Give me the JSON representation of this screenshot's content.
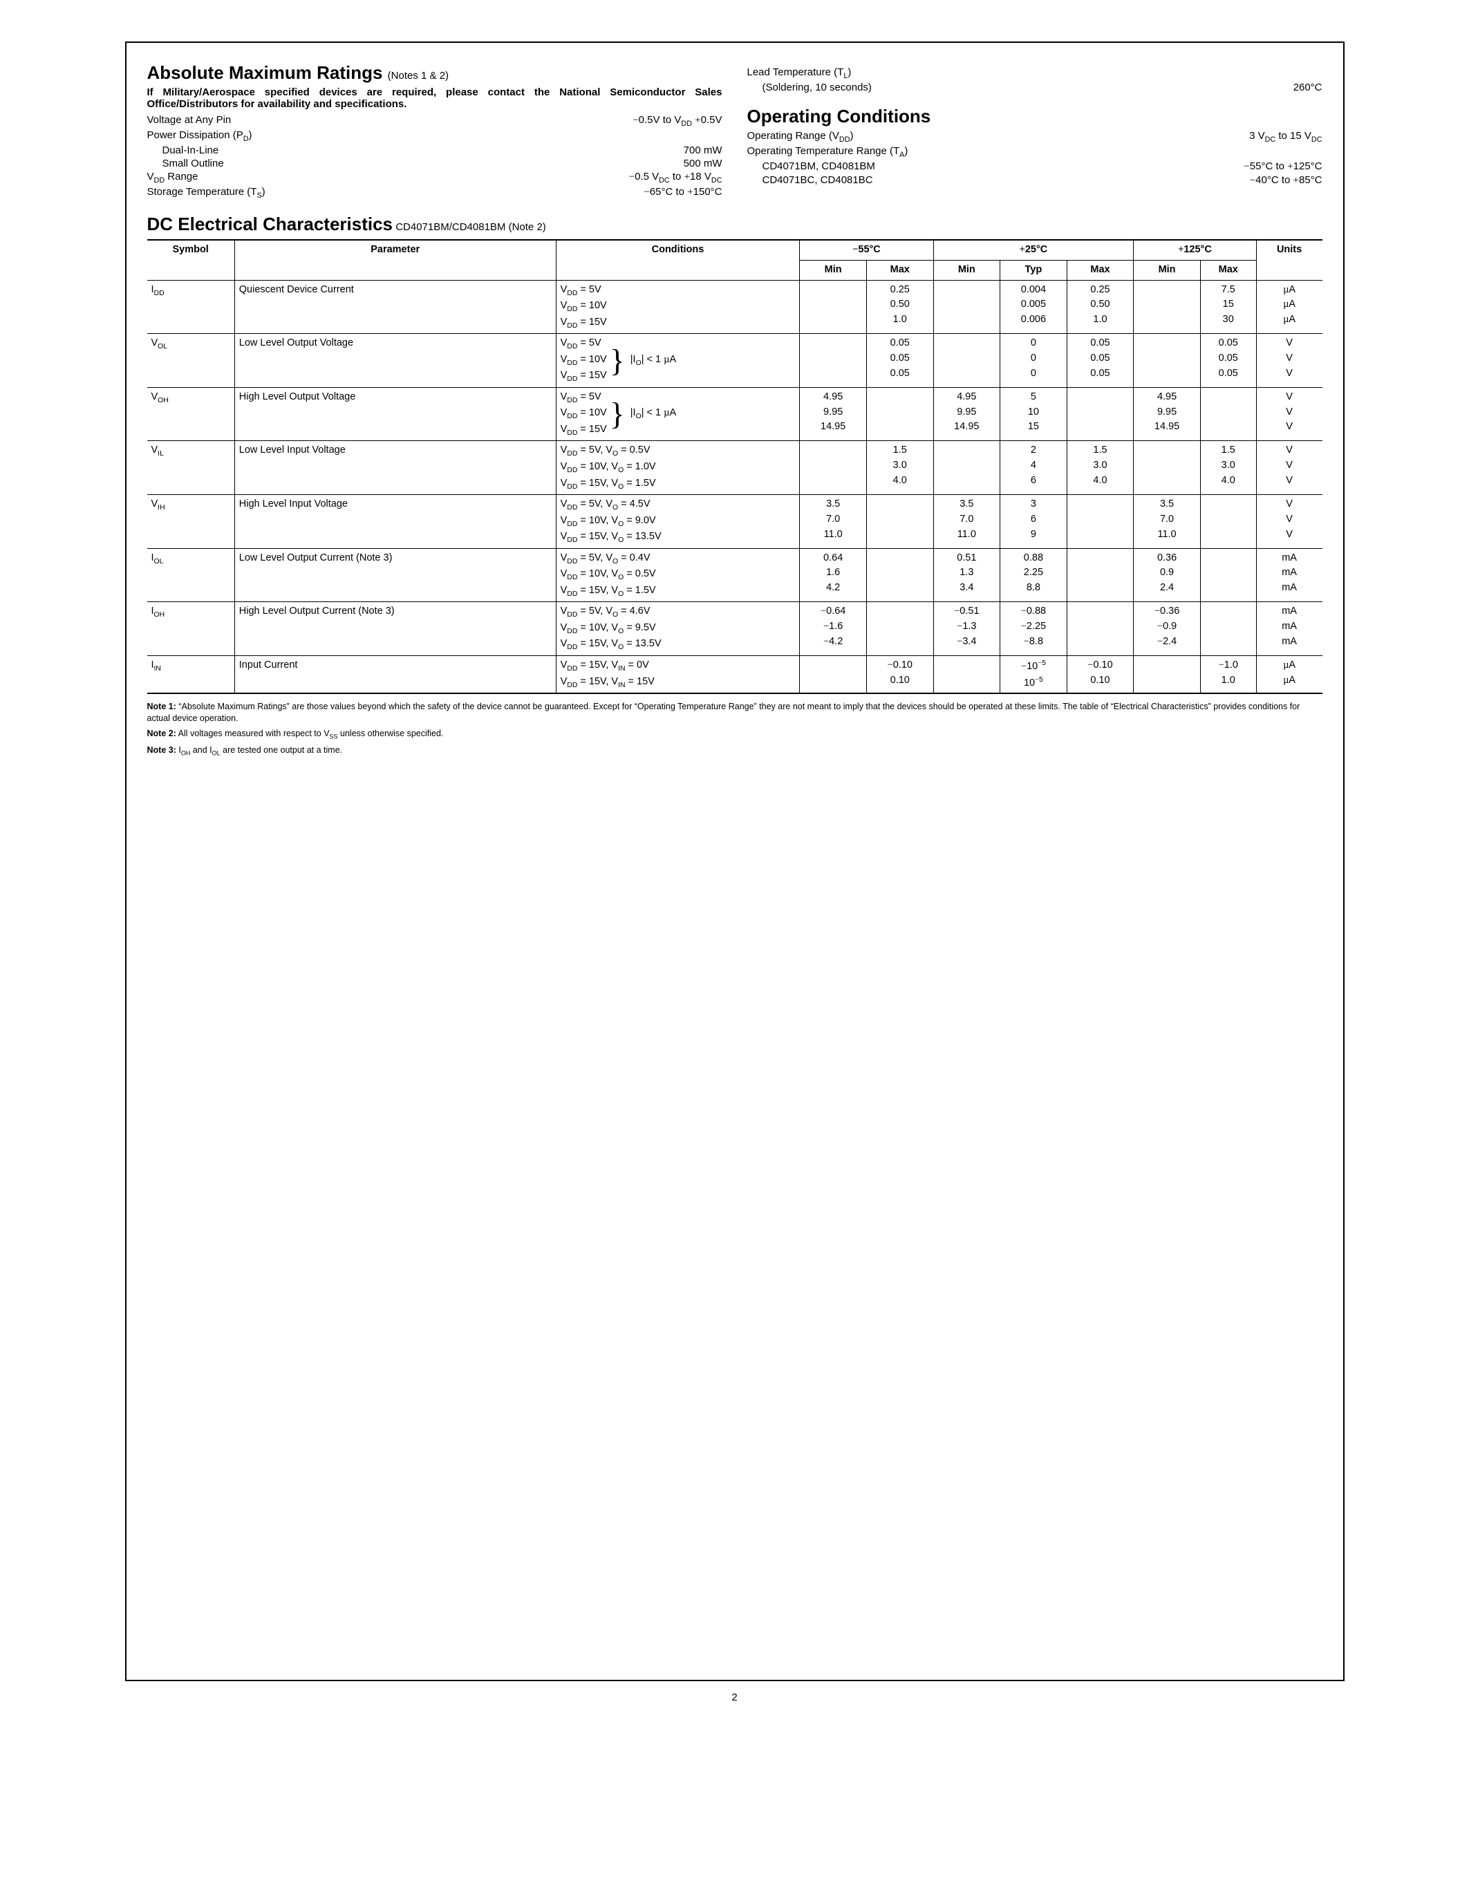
{
  "abs_max": {
    "title": "Absolute Maximum Ratings",
    "title_note": "(Notes 1 & 2)",
    "military_note": "If Military/Aerospace specified devices are required, please contact the National Semiconductor Sales Office/Distributors for availability and specifications.",
    "voltage_pin_label": "Voltage at Any Pin",
    "voltage_pin_val": "−0.5V to V_DD +0.5V",
    "pd_label": "Power Dissipation (P_D)",
    "pd_dual_label": "Dual-In-Line",
    "pd_dual_val": "700 mW",
    "pd_so_label": "Small Outline",
    "pd_so_val": "500 mW",
    "vdd_range_label": "V_DD Range",
    "vdd_range_val": "−0.5 V_DC to +18 V_DC",
    "storage_label": "Storage Temperature (T_S)",
    "storage_val": "−65°C to +150°C",
    "lead_label": "Lead Temperature (T_L)",
    "lead_sub": "(Soldering, 10 seconds)",
    "lead_val": "260°C"
  },
  "op_cond": {
    "title": "Operating Conditions",
    "vdd_label": "Operating Range (V_DD)",
    "vdd_val": "3 V_DC to 15 V_DC",
    "temp_label": "Operating Temperature Range (T_A)",
    "bm_label": "CD4071BM, CD4081BM",
    "bm_val": "−55°C to +125°C",
    "bc_label": "CD4071BC, CD4081BC",
    "bc_val": "−40°C to +85°C"
  },
  "dc": {
    "title": "DC Electrical Characteristics",
    "subtitle": "CD4071BM/CD4081BM (Note 2)",
    "headers": {
      "symbol": "Symbol",
      "parameter": "Parameter",
      "conditions": "Conditions",
      "t1": "−55°C",
      "t2": "+25°C",
      "t3": "+125°C",
      "min": "Min",
      "typ": "Typ",
      "max": "Max",
      "units": "Units"
    },
    "rows": [
      {
        "sym": "I_DD",
        "param": "Quiescent Device Current",
        "cond": [
          "V_DD = 5V",
          "V_DD = 10V",
          "V_DD = 15V"
        ],
        "brace": "",
        "t1min": [
          "",
          "",
          ""
        ],
        "t1max": [
          "0.25",
          "0.50",
          "1.0"
        ],
        "t2min": [
          "",
          "",
          ""
        ],
        "t2typ": [
          "0.004",
          "0.005",
          "0.006"
        ],
        "t2max": [
          "0.25",
          "0.50",
          "1.0"
        ],
        "t3min": [
          "",
          "",
          ""
        ],
        "t3max": [
          "7.5",
          "15",
          "30"
        ],
        "units": [
          "µA",
          "µA",
          "µA"
        ]
      },
      {
        "sym": "V_OL",
        "param": "Low Level Output Voltage",
        "cond": [
          "V_DD = 5V",
          "V_DD = 10V",
          "V_DD = 15V"
        ],
        "brace": "|I_O| < 1 µA",
        "t1min": [
          "",
          "",
          ""
        ],
        "t1max": [
          "0.05",
          "0.05",
          "0.05"
        ],
        "t2min": [
          "",
          "",
          ""
        ],
        "t2typ": [
          "0",
          "0",
          "0"
        ],
        "t2max": [
          "0.05",
          "0.05",
          "0.05"
        ],
        "t3min": [
          "",
          "",
          ""
        ],
        "t3max": [
          "0.05",
          "0.05",
          "0.05"
        ],
        "units": [
          "V",
          "V",
          "V"
        ]
      },
      {
        "sym": "V_OH",
        "param": "High Level Output Voltage",
        "cond": [
          "V_DD = 5V",
          "V_DD = 10V",
          "V_DD = 15V"
        ],
        "brace": "|I_O| < 1 µA",
        "t1min": [
          "4.95",
          "9.95",
          "14.95"
        ],
        "t1max": [
          "",
          "",
          ""
        ],
        "t2min": [
          "4.95",
          "9.95",
          "14.95"
        ],
        "t2typ": [
          "5",
          "10",
          "15"
        ],
        "t2max": [
          "",
          "",
          ""
        ],
        "t3min": [
          "4.95",
          "9.95",
          "14.95"
        ],
        "t3max": [
          "",
          "",
          ""
        ],
        "units": [
          "V",
          "V",
          "V"
        ]
      },
      {
        "sym": "V_IL",
        "param": "Low Level Input Voltage",
        "cond": [
          "V_DD = 5V, V_O = 0.5V",
          "V_DD = 10V, V_O = 1.0V",
          "V_DD = 15V, V_O = 1.5V"
        ],
        "brace": "",
        "t1min": [
          "",
          "",
          ""
        ],
        "t1max": [
          "1.5",
          "3.0",
          "4.0"
        ],
        "t2min": [
          "",
          "",
          ""
        ],
        "t2typ": [
          "2",
          "4",
          "6"
        ],
        "t2max": [
          "1.5",
          "3.0",
          "4.0"
        ],
        "t3min": [
          "",
          "",
          ""
        ],
        "t3max": [
          "1.5",
          "3.0",
          "4.0"
        ],
        "units": [
          "V",
          "V",
          "V"
        ]
      },
      {
        "sym": "V_IH",
        "param": "High Level Input Voltage",
        "cond": [
          "V_DD = 5V, V_O = 4.5V",
          "V_DD = 10V, V_O = 9.0V",
          "V_DD = 15V, V_O = 13.5V"
        ],
        "brace": "",
        "t1min": [
          "3.5",
          "7.0",
          "11.0"
        ],
        "t1max": [
          "",
          "",
          ""
        ],
        "t2min": [
          "3.5",
          "7.0",
          "11.0"
        ],
        "t2typ": [
          "3",
          "6",
          "9"
        ],
        "t2max": [
          "",
          "",
          ""
        ],
        "t3min": [
          "3.5",
          "7.0",
          "11.0"
        ],
        "t3max": [
          "",
          "",
          ""
        ],
        "units": [
          "V",
          "V",
          "V"
        ]
      },
      {
        "sym": "I_OL",
        "param": "Low Level Output Current (Note 3)",
        "cond": [
          "V_DD = 5V, V_O = 0.4V",
          "V_DD = 10V, V_O = 0.5V",
          "V_DD = 15V, V_O = 1.5V"
        ],
        "brace": "",
        "t1min": [
          "0.64",
          "1.6",
          "4.2"
        ],
        "t1max": [
          "",
          "",
          ""
        ],
        "t2min": [
          "0.51",
          "1.3",
          "3.4"
        ],
        "t2typ": [
          "0.88",
          "2.25",
          "8.8"
        ],
        "t2max": [
          "",
          "",
          ""
        ],
        "t3min": [
          "0.36",
          "0.9",
          "2.4"
        ],
        "t3max": [
          "",
          "",
          ""
        ],
        "units": [
          "mA",
          "mA",
          "mA"
        ]
      },
      {
        "sym": "I_OH",
        "param": "High Level Output Current (Note 3)",
        "cond": [
          "V_DD = 5V, V_O = 4.6V",
          "V_DD = 10V, V_O = 9.5V",
          "V_DD = 15V, V_O = 13.5V"
        ],
        "brace": "",
        "t1min": [
          "−0.64",
          "−1.6",
          "−4.2"
        ],
        "t1max": [
          "",
          "",
          ""
        ],
        "t2min": [
          "−0.51",
          "−1.3",
          "−3.4"
        ],
        "t2typ": [
          "−0.88",
          "−2.25",
          "−8.8"
        ],
        "t2max": [
          "",
          "",
          ""
        ],
        "t3min": [
          "−0.36",
          "−0.9",
          "−2.4"
        ],
        "t3max": [
          "",
          "",
          ""
        ],
        "units": [
          "mA",
          "mA",
          "mA"
        ]
      },
      {
        "sym": "I_IN",
        "param": "Input Current",
        "cond": [
          "V_DD = 15V, V_IN = 0V",
          "V_DD = 15V, V_IN = 15V"
        ],
        "brace": "",
        "t1min": [
          "",
          ""
        ],
        "t1max": [
          "−0.10",
          "0.10"
        ],
        "t2min": [
          "",
          ""
        ],
        "t2typ": [
          "−10^−5",
          "10^−5"
        ],
        "t2max": [
          "−0.10",
          "0.10"
        ],
        "t3min": [
          "",
          ""
        ],
        "t3max": [
          "−1.0",
          "1.0"
        ],
        "units": [
          "µA",
          "µA"
        ]
      }
    ]
  },
  "notes": {
    "n1_label": "Note 1:",
    "n1": "“Absolute Maximum Ratings” are those values beyond which the safety of the device cannot be guaranteed. Except for “Operating Temperature Range” they are not meant to imply that the devices should be operated at these limits. The table of “Electrical Characteristics” provides conditions for actual device operation.",
    "n2_label": "Note 2:",
    "n2": "All voltages measured with respect to V_SS unless otherwise specified.",
    "n3_label": "Note 3:",
    "n3": "I_OH and I_OL are tested one output at a time."
  },
  "page_number": "2"
}
